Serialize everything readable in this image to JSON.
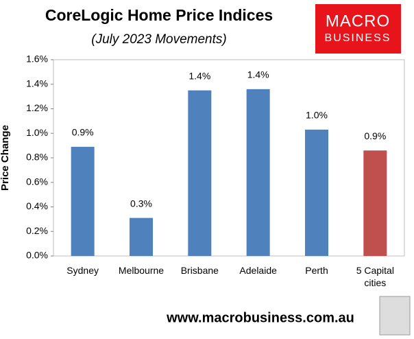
{
  "chart_data": {
    "type": "bar",
    "title": "CoreLogic Home Price Indices",
    "subtitle": "(July 2023 Movements)",
    "y_label": "Price Change",
    "categories": [
      "Sydney",
      "Melbourne",
      "Brisbane",
      "Adelaide",
      "Perth",
      "5 Capital cities"
    ],
    "values": [
      0.89,
      0.31,
      1.35,
      1.36,
      1.03,
      0.86
    ],
    "value_labels": [
      "0.9%",
      "0.3%",
      "1.4%",
      "1.4%",
      "1.0%",
      "0.9%"
    ],
    "colors": [
      "#4f81bd",
      "#4f81bd",
      "#4f81bd",
      "#4f81bd",
      "#4f81bd",
      "#c0504d"
    ],
    "ylim": [
      0,
      1.6
    ],
    "yticks": [
      {
        "value": 0,
        "label": "0.0%"
      },
      {
        "value": 0.2,
        "label": "0.2%"
      },
      {
        "value": 0.4,
        "label": "0.4%"
      },
      {
        "value": 0.6,
        "label": "0.6%"
      },
      {
        "value": 0.8,
        "label": "0.8%"
      },
      {
        "value": 1.0,
        "label": "1.0%"
      },
      {
        "value": 1.2,
        "label": "1.2%"
      },
      {
        "value": 1.4,
        "label": "1.4%"
      },
      {
        "value": 1.6,
        "label": "1.6%"
      }
    ],
    "grid": false
  },
  "logo": {
    "line1": "MACRO",
    "line2": "BUSINESS"
  },
  "footer": "www.macrobusiness.com.au"
}
